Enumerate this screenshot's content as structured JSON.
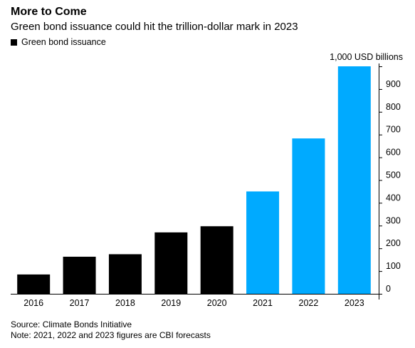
{
  "header": {
    "title": "More to Come",
    "subtitle": "Green bond issuance could hit the trillion-dollar mark in 2023"
  },
  "legend": {
    "label": "Green bond issuance",
    "swatch_color": "#000000"
  },
  "footer": {
    "source": "Source: Climate Bonds Initiative",
    "note": "Note: 2021, 2022 and 2023 figures are CBI forecasts"
  },
  "chart_data": {
    "type": "bar",
    "categories": [
      "2016",
      "2017",
      "2018",
      "2019",
      "2020",
      "2021",
      "2022",
      "2023"
    ],
    "values": [
      85,
      163,
      174,
      270,
      297,
      450,
      683,
      1000
    ],
    "forecast": [
      false,
      false,
      false,
      false,
      false,
      true,
      true,
      true
    ],
    "colors": {
      "actual": "#000000",
      "forecast": "#00aaff"
    },
    "ylabel": "1,000 USD billions",
    "ylim": [
      0,
      1000
    ],
    "yticks": [
      0,
      100,
      200,
      300,
      400,
      500,
      600,
      700,
      800,
      900
    ],
    "y_axis_side": "right",
    "grid": false,
    "legend_position": "top-left"
  }
}
